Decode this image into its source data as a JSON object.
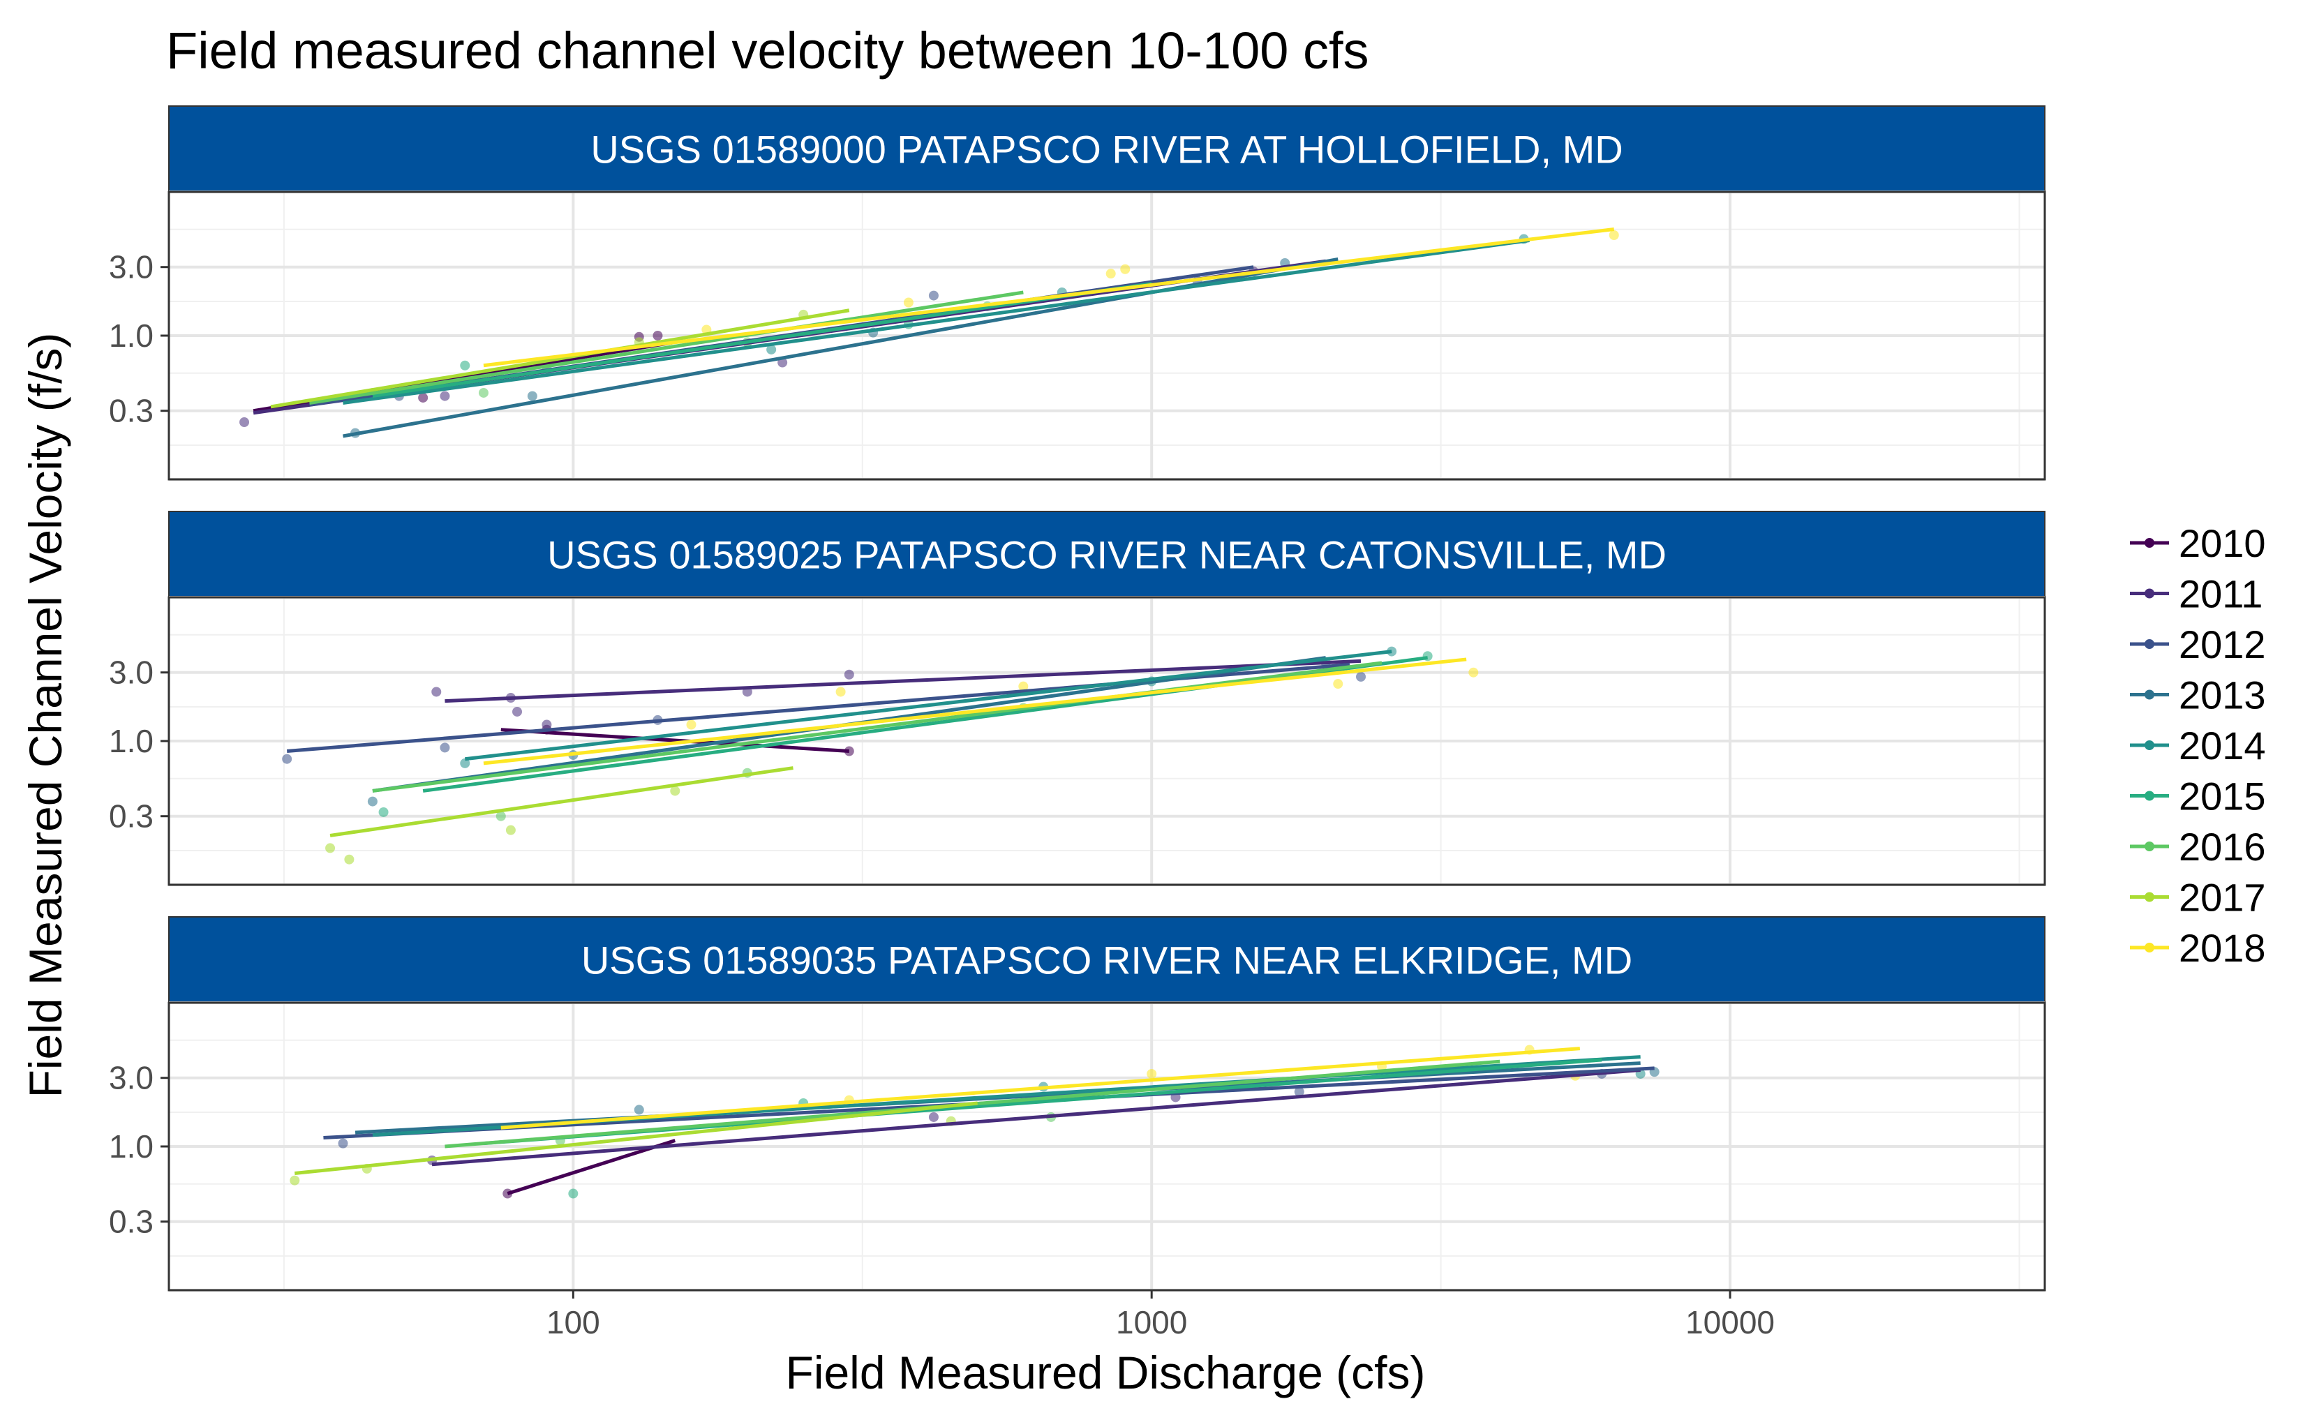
{
  "chart_data": {
    "type": "scatter",
    "title": "Field measured channel velocity between 10-100 cfs",
    "xlabel": "Field Measured Discharge (cfs)",
    "ylabel": "Field Measured Channel Velocity (f/s)",
    "x_scale": "log10",
    "y_scale": "log10",
    "xlim": [
      20,
      35000
    ],
    "ylim": [
      0.1,
      10
    ],
    "x_ticks": [
      100,
      1000,
      10000
    ],
    "x_tick_labels": [
      "100",
      "1000",
      "10000"
    ],
    "y_ticks": [
      0.3,
      1.0,
      3.0
    ],
    "y_tick_labels": [
      "0.3",
      "1.0",
      "3.0"
    ],
    "grid": true,
    "legend_position": "right",
    "legend": [
      {
        "label": "2010",
        "color": "#440154"
      },
      {
        "label": "2011",
        "color": "#472D7B"
      },
      {
        "label": "2012",
        "color": "#3B528B"
      },
      {
        "label": "2013",
        "color": "#2C728E"
      },
      {
        "label": "2014",
        "color": "#21908C"
      },
      {
        "label": "2015",
        "color": "#27AD81"
      },
      {
        "label": "2016",
        "color": "#5DC863"
      },
      {
        "label": "2017",
        "color": "#AADC32"
      },
      {
        "label": "2018",
        "color": "#FDE725"
      }
    ],
    "panels": [
      {
        "strip": "USGS 01589000 PATAPSCO RIVER AT HOLLOFIELD, MD",
        "lines": [
          {
            "year": "2010",
            "x": [
              28,
              150
            ],
            "y": [
              0.3,
              0.9
            ]
          },
          {
            "year": "2011",
            "x": [
              28,
              2000
            ],
            "y": [
              0.29,
              3.3
            ]
          },
          {
            "year": "2012",
            "x": [
              35,
              1500
            ],
            "y": [
              0.33,
              3.0
            ]
          },
          {
            "year": "2013",
            "x": [
              40,
              2100
            ],
            "y": [
              0.2,
              3.4
            ]
          },
          {
            "year": "2014",
            "x": [
              40,
              4500
            ],
            "y": [
              0.34,
              4.6
            ]
          },
          {
            "year": "2015",
            "x": [
              45,
              1000
            ],
            "y": [
              0.38,
              2.3
            ]
          },
          {
            "year": "2016",
            "x": [
              35,
              600
            ],
            "y": [
              0.34,
              2.0
            ]
          },
          {
            "year": "2017",
            "x": [
              30,
              300
            ],
            "y": [
              0.32,
              1.5
            ]
          },
          {
            "year": "2018",
            "x": [
              70,
              6300
            ],
            "y": [
              0.62,
              5.5
            ]
          }
        ],
        "points": [
          {
            "year": "2010",
            "x": 55,
            "y": 0.37
          },
          {
            "year": "2010",
            "x": 130,
            "y": 0.98
          },
          {
            "year": "2010",
            "x": 140,
            "y": 1.0
          },
          {
            "year": "2011",
            "x": 27,
            "y": 0.25
          },
          {
            "year": "2011",
            "x": 60,
            "y": 0.38
          },
          {
            "year": "2011",
            "x": 1500,
            "y": 2.8
          },
          {
            "year": "2011",
            "x": 230,
            "y": 0.65
          },
          {
            "year": "2012",
            "x": 50,
            "y": 0.38
          },
          {
            "year": "2012",
            "x": 420,
            "y": 1.9
          },
          {
            "year": "2012",
            "x": 1200,
            "y": 2.4
          },
          {
            "year": "2013",
            "x": 42,
            "y": 0.21
          },
          {
            "year": "2013",
            "x": 85,
            "y": 0.38
          },
          {
            "year": "2013",
            "x": 330,
            "y": 1.05
          },
          {
            "year": "2013",
            "x": 1700,
            "y": 3.2
          },
          {
            "year": "2014",
            "x": 220,
            "y": 0.8
          },
          {
            "year": "2014",
            "x": 4400,
            "y": 4.7
          },
          {
            "year": "2014",
            "x": 700,
            "y": 2.0
          },
          {
            "year": "2015",
            "x": 65,
            "y": 0.62
          },
          {
            "year": "2015",
            "x": 90,
            "y": 0.6
          },
          {
            "year": "2015",
            "x": 380,
            "y": 1.2
          },
          {
            "year": "2016",
            "x": 70,
            "y": 0.4
          },
          {
            "year": "2016",
            "x": 200,
            "y": 0.9
          },
          {
            "year": "2016",
            "x": 520,
            "y": 1.6
          },
          {
            "year": "2017",
            "x": 45,
            "y": 0.4
          },
          {
            "year": "2017",
            "x": 250,
            "y": 1.4
          },
          {
            "year": "2017",
            "x": 130,
            "y": 0.9
          },
          {
            "year": "2018",
            "x": 380,
            "y": 1.7
          },
          {
            "year": "2018",
            "x": 850,
            "y": 2.7
          },
          {
            "year": "2018",
            "x": 900,
            "y": 2.9
          },
          {
            "year": "2018",
            "x": 6300,
            "y": 5.0
          },
          {
            "year": "2018",
            "x": 170,
            "y": 1.1
          }
        ]
      },
      {
        "strip": "USGS 01589025 PATAPSCO RIVER NEAR CATONSVILLE, MD",
        "lines": [
          {
            "year": "2010",
            "x": 0,
            "y": 0,
            "x_pts": [
              75,
              300
            ],
            "y_pts": [
              1.2,
              0.85
            ]
          },
          {
            "year": "2011",
            "x_pts": [
              60,
              2300
            ],
            "y_pts": [
              1.9,
              3.6
            ]
          },
          {
            "year": "2012",
            "x_pts": [
              32,
              2200
            ],
            "y_pts": [
              0.85,
              3.4
            ]
          },
          {
            "year": "2013",
            "x_pts": [
              45,
              2000
            ],
            "y_pts": [
              0.45,
              3.8
            ]
          },
          {
            "year": "2014",
            "x_pts": [
              65,
              2600
            ],
            "y_pts": [
              0.75,
              4.2
            ]
          },
          {
            "year": "2015",
            "x_pts": [
              55,
              3000
            ],
            "y_pts": [
              0.45,
              3.8
            ]
          },
          {
            "year": "2016",
            "x_pts": [
              45,
              2500
            ],
            "y_pts": [
              0.45,
              3.5
            ]
          },
          {
            "year": "2017",
            "x_pts": [
              38,
              240
            ],
            "y_pts": [
              0.22,
              0.65
            ]
          },
          {
            "year": "2018",
            "x_pts": [
              70,
              3500
            ],
            "y_pts": [
              0.7,
              3.7
            ]
          }
        ],
        "points": [
          {
            "year": "2010",
            "x": 300,
            "y": 0.85
          },
          {
            "year": "2010",
            "x": 90,
            "y": 1.2
          },
          {
            "year": "2011",
            "x": 58,
            "y": 2.2
          },
          {
            "year": "2011",
            "x": 78,
            "y": 2.0
          },
          {
            "year": "2011",
            "x": 80,
            "y": 1.6
          },
          {
            "year": "2011",
            "x": 300,
            "y": 2.9
          },
          {
            "year": "2011",
            "x": 200,
            "y": 2.2
          },
          {
            "year": "2011",
            "x": 90,
            "y": 1.3
          },
          {
            "year": "2012",
            "x": 32,
            "y": 0.75
          },
          {
            "year": "2012",
            "x": 140,
            "y": 1.4
          },
          {
            "year": "2012",
            "x": 2300,
            "y": 2.8
          },
          {
            "year": "2012",
            "x": 60,
            "y": 0.9
          },
          {
            "year": "2013",
            "x": 45,
            "y": 0.38
          },
          {
            "year": "2013",
            "x": 100,
            "y": 0.8
          },
          {
            "year": "2013",
            "x": 2000,
            "y": 3.5
          },
          {
            "year": "2014",
            "x": 65,
            "y": 0.7
          },
          {
            "year": "2014",
            "x": 2600,
            "y": 4.2
          },
          {
            "year": "2014",
            "x": 1000,
            "y": 2.6
          },
          {
            "year": "2015",
            "x": 47,
            "y": 0.32
          },
          {
            "year": "2015",
            "x": 3000,
            "y": 3.9
          },
          {
            "year": "2016",
            "x": 75,
            "y": 0.3
          },
          {
            "year": "2016",
            "x": 200,
            "y": 0.6
          },
          {
            "year": "2016",
            "x": 600,
            "y": 1.7
          },
          {
            "year": "2017",
            "x": 38,
            "y": 0.18
          },
          {
            "year": "2017",
            "x": 41,
            "y": 0.15
          },
          {
            "year": "2017",
            "x": 78,
            "y": 0.24
          },
          {
            "year": "2017",
            "x": 150,
            "y": 0.45
          },
          {
            "year": "2018",
            "x": 290,
            "y": 2.2
          },
          {
            "year": "2018",
            "x": 2100,
            "y": 2.5
          },
          {
            "year": "2018",
            "x": 3600,
            "y": 3.0
          },
          {
            "year": "2018",
            "x": 600,
            "y": 2.4
          },
          {
            "year": "2018",
            "x": 160,
            "y": 1.3
          }
        ]
      },
      {
        "strip": "USGS 01589035 PATAPSCO RIVER NEAR ELKRIDGE, MD",
        "lines": [
          {
            "year": "2010",
            "x_pts": [
              77,
              150
            ],
            "y_pts": [
              0.47,
              1.1
            ]
          },
          {
            "year": "2011",
            "x_pts": [
              57,
              7000
            ],
            "y_pts": [
              0.75,
              3.4
            ]
          },
          {
            "year": "2012",
            "x_pts": [
              37,
              7400
            ],
            "y_pts": [
              1.15,
              3.5
            ]
          },
          {
            "year": "2013",
            "x_pts": [
              42,
              7000
            ],
            "y_pts": [
              1.25,
              3.8
            ]
          },
          {
            "year": "2014",
            "x_pts": [
              45,
              7000
            ],
            "y_pts": [
              1.2,
              4.2
            ]
          },
          {
            "year": "2015",
            "x_pts": [
              70,
              6000
            ],
            "y_pts": [
              1.05,
              4.0
            ]
          },
          {
            "year": "2016",
            "x_pts": [
              60,
              4000
            ],
            "y_pts": [
              1.0,
              3.9
            ]
          },
          {
            "year": "2017",
            "x_pts": [
              33,
              500
            ],
            "y_pts": [
              0.65,
              2.0
            ]
          },
          {
            "year": "2018",
            "x_pts": [
              75,
              5500
            ],
            "y_pts": [
              1.35,
              4.8
            ]
          }
        ],
        "points": [
          {
            "year": "2010",
            "x": 77,
            "y": 0.47
          },
          {
            "year": "2011",
            "x": 57,
            "y": 0.8
          },
          {
            "year": "2011",
            "x": 1100,
            "y": 2.2
          },
          {
            "year": "2011",
            "x": 420,
            "y": 1.6
          },
          {
            "year": "2012",
            "x": 40,
            "y": 1.05
          },
          {
            "year": "2012",
            "x": 1800,
            "y": 2.4
          },
          {
            "year": "2012",
            "x": 6000,
            "y": 3.2
          },
          {
            "year": "2013",
            "x": 130,
            "y": 1.8
          },
          {
            "year": "2013",
            "x": 7400,
            "y": 3.3
          },
          {
            "year": "2014",
            "x": 7000,
            "y": 3.2
          },
          {
            "year": "2014",
            "x": 650,
            "y": 2.6
          },
          {
            "year": "2015",
            "x": 100,
            "y": 0.47
          },
          {
            "year": "2015",
            "x": 250,
            "y": 2.0
          },
          {
            "year": "2016",
            "x": 670,
            "y": 1.6
          },
          {
            "year": "2016",
            "x": 95,
            "y": 1.1
          },
          {
            "year": "2017",
            "x": 33,
            "y": 0.58
          },
          {
            "year": "2017",
            "x": 44,
            "y": 0.7
          },
          {
            "year": "2017",
            "x": 450,
            "y": 1.5
          },
          {
            "year": "2018",
            "x": 5400,
            "y": 3.1
          },
          {
            "year": "2018",
            "x": 1000,
            "y": 3.2
          },
          {
            "year": "2018",
            "x": 2500,
            "y": 3.6
          },
          {
            "year": "2018",
            "x": 4500,
            "y": 4.7
          },
          {
            "year": "2018",
            "x": 300,
            "y": 2.1
          }
        ]
      }
    ]
  }
}
